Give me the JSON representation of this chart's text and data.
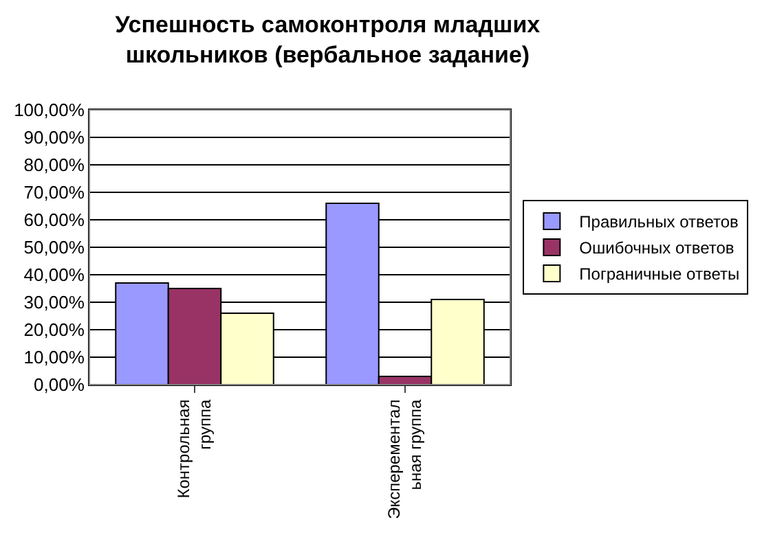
{
  "chart_data": {
    "type": "bar",
    "title": "Успешность самоконтроля младших школьников (вербальное задание)",
    "categories": [
      "Контрольная группа",
      "Эксперементальная группа"
    ],
    "series": [
      {
        "name": "Правильных ответов",
        "color": "#9999ff",
        "values": [
          37,
          66
        ]
      },
      {
        "name": "Ошибочных ответов",
        "color": "#993366",
        "values": [
          35,
          3
        ]
      },
      {
        "name": "Пограничные ответы",
        "color": "#ffffcc",
        "values": [
          26,
          31
        ]
      }
    ],
    "ylim": [
      0,
      100
    ],
    "yticks": [
      {
        "value": 0,
        "label": "0,00%"
      },
      {
        "value": 10,
        "label": "10,00%"
      },
      {
        "value": 20,
        "label": "20,00%"
      },
      {
        "value": 30,
        "label": "30,00%"
      },
      {
        "value": 40,
        "label": "40,00%"
      },
      {
        "value": 50,
        "label": "50,00%"
      },
      {
        "value": 60,
        "label": "60,00%"
      },
      {
        "value": 70,
        "label": "70,00%"
      },
      {
        "value": 80,
        "label": "80,00%"
      },
      {
        "value": 90,
        "label": "90,00%"
      },
      {
        "value": 100,
        "label": "100,00%"
      }
    ],
    "grid": "y",
    "legend": "right"
  }
}
